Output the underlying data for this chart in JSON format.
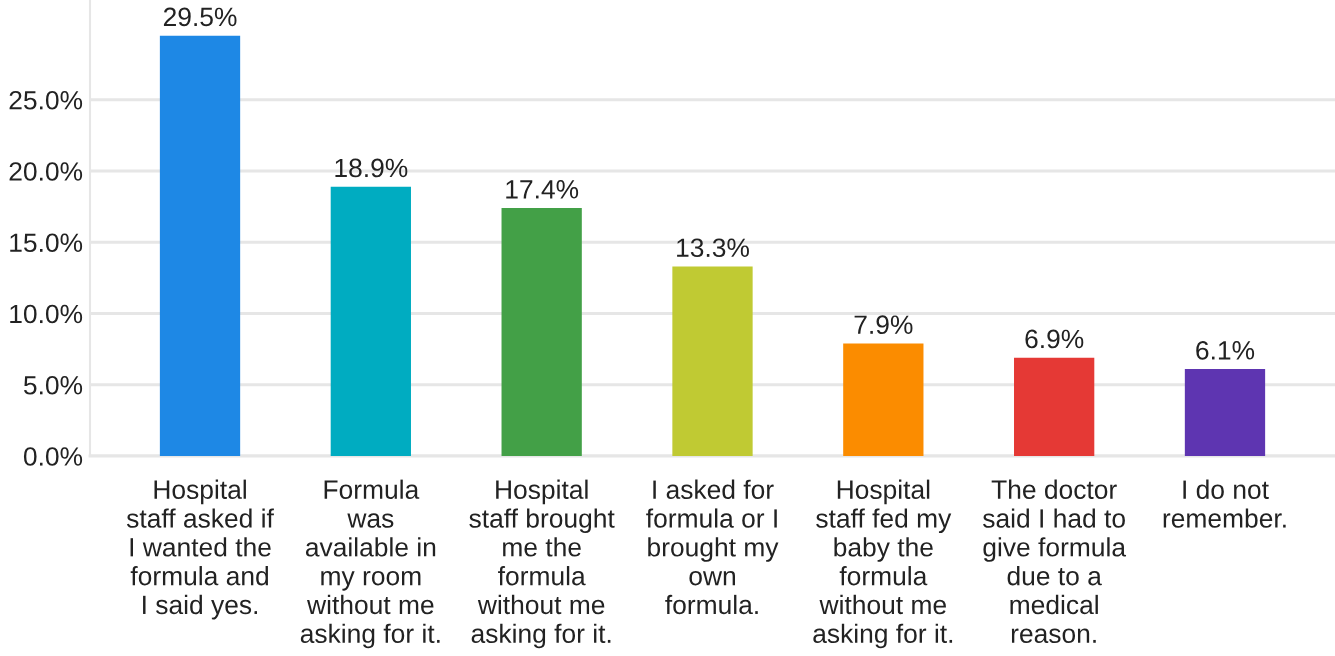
{
  "chart_data": {
    "type": "bar",
    "categories": [
      "Hospital\nstaff asked if\nI wanted the\nformula and\nI said yes.",
      "Formula\nwas\navailable in\nmy room\nwithout me\nasking for it.",
      "Hospital\nstaff brought\nme the\nformula\nwithout me\nasking for it.",
      "I asked for\nformula or I\nbrought my\nown\nformula.",
      "Hospital\nstaff fed my\nbaby the\nformula\nwithout me\nasking for it.",
      "The doctor\nsaid I had to\ngive formula\ndue to a\nmedical\nreason.",
      "I do not\nremember."
    ],
    "values": [
      29.5,
      18.9,
      17.4,
      13.3,
      7.9,
      6.9,
      6.1
    ],
    "colors": [
      "#1e88e5",
      "#00acc1",
      "#43a047",
      "#c0ca33",
      "#fb8c00",
      "#e53935",
      "#5e35b1"
    ],
    "value_labels": [
      "29.5%",
      "18.9%",
      "17.4%",
      "13.3%",
      "7.9%",
      "6.9%",
      "6.1%"
    ],
    "ylim": [
      0,
      32
    ],
    "yticks": [
      {
        "value": 0,
        "label": "0.0%"
      },
      {
        "value": 5,
        "label": "5.0%"
      },
      {
        "value": 10,
        "label": "10.0%"
      },
      {
        "value": 15,
        "label": "15.0%"
      },
      {
        "value": 20,
        "label": "20.0%"
      },
      {
        "value": 25,
        "label": "25.0%"
      }
    ],
    "grid": "y"
  }
}
